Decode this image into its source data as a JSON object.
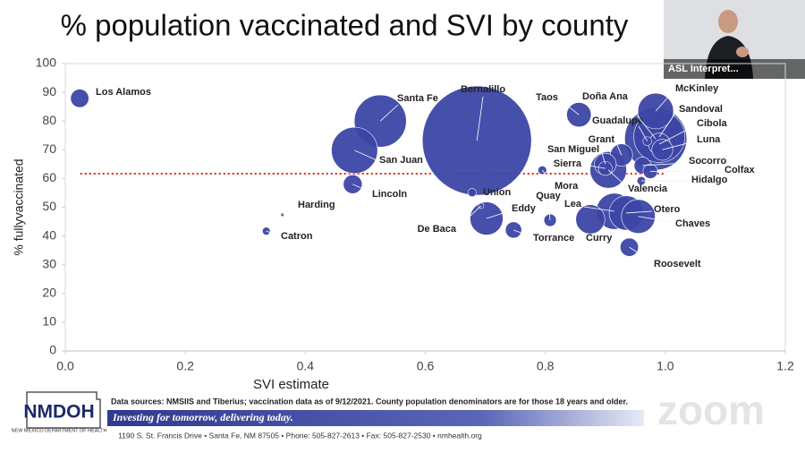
{
  "chart_data": {
    "type": "bubble",
    "title": "% population vaccinated and SVI by county",
    "x_label": "SVI estimate",
    "y_label": "% fullyvaccinated",
    "xlim": [
      0,
      1.2
    ],
    "ylim": [
      0,
      100
    ],
    "xticks": [
      {
        "value": 0,
        "label": "0.0"
      },
      0.2,
      0.4,
      0.6,
      0.8,
      {
        "value": 1,
        "label": "1.0"
      },
      1.2
    ],
    "yticks": [
      0,
      10,
      20,
      30,
      40,
      50,
      60,
      70,
      80,
      90,
      100
    ],
    "grid": false,
    "color": "#3d46a6",
    "series": [
      {
        "name": "County",
        "labels": [
          "Los Alamos",
          "Harding",
          "Catron",
          "Lincoln",
          "San Juan",
          "Santa Fe",
          "Bernalillo",
          "Union",
          "De Baca",
          "Eddy",
          "Torrance",
          "Quay",
          "Mora",
          "Taos",
          "Sierra",
          "Grant",
          "San Miguel",
          "Valencia",
          "Lea",
          "Curry",
          "Otero",
          "Chaves",
          "Roosevelt",
          "McKinley",
          "Doña Ana",
          "Sandoval",
          "Guadalupe",
          "Cibola",
          "Luna",
          "Socorro",
          "Colfax",
          "Hidalgo"
        ],
        "x": [
          0.024,
          0.362,
          0.335,
          0.479,
          0.482,
          0.525,
          0.686,
          0.678,
          0.693,
          0.702,
          0.747,
          0.808,
          0.795,
          0.856,
          0.9,
          0.927,
          0.9,
          0.905,
          0.915,
          0.875,
          0.935,
          0.955,
          0.94,
          0.984,
          0.984,
          0.99,
          0.97,
          0.99,
          0.995,
          0.962,
          0.975,
          0.96
        ],
        "values": [
          87.9,
          47.4,
          41.7,
          58,
          69.8,
          80,
          73.2,
          55.1,
          50.5,
          46.1,
          42.1,
          45.5,
          62.9,
          82.2,
          63.5,
          68.2,
          65,
          63,
          48.6,
          45.8,
          48,
          46.8,
          36.1,
          83.5,
          73.8,
          74.5,
          73,
          72,
          70,
          64.5,
          62.5,
          59.2
        ],
        "sizes": [
          19000,
          650,
          3600,
          20000,
          121000,
          154000,
          676000,
          4000,
          1700,
          62000,
          15000,
          8700,
          4200,
          34000,
          11000,
          28000,
          27000,
          76000,
          74000,
          48000,
          67000,
          65000,
          19000,
          72000,
          219000,
          148000,
          4400,
          27000,
          25000,
          16000,
          12000,
          4200
        ]
      }
    ],
    "reference_line": {
      "y": 61.7,
      "x": [
        0.025,
        1.0
      ],
      "color": "#e0251f"
    }
  },
  "slide": {
    "video_label": "ASL Interpret...",
    "source_note": "Data sources: NMSIIS and Tiberius; vaccination data as of 9/12/2021. County population denominators are for those 18 years and older.",
    "logo": "NMDOH",
    "logo_subtitle": "NEW MEXICO DEPARTMENT OF HEALTH",
    "tagline": "Investing for tomorrow, delivering today.",
    "address": "1190 S. St. Francis Drive • Santa Fe, NM 87505 • Phone: 505-827-2613 • Fax: 505-827-2530 • nmhealth.org",
    "watermark": "zoom"
  }
}
